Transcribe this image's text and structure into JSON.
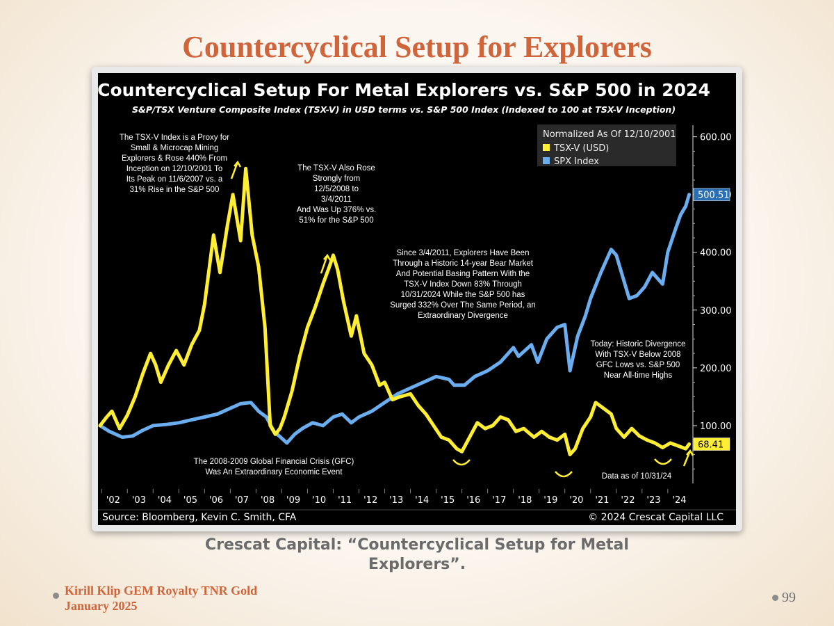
{
  "slide": {
    "title": "Countercyclical Setup for Explorers",
    "caption": "Crescat Capital: “Countercyclical Setup for Metal Explorers”.",
    "footer_line1": "Kirill Klip GEM Royalty TNR Gold",
    "footer_line2": "January 2025",
    "page_number": "99"
  },
  "chart_data": {
    "type": "line",
    "title": "Countercyclical Setup For Metal Explorers vs. S&P 500 in 2024",
    "subtitle": "S&P/TSX Venture Composite Index (TSX-V) in USD terms vs. S&P 500 Index (Indexed to 100 at TSX-V Inception)",
    "legend_title": "Normalized As Of 12/10/2001",
    "legend_position": "top-right",
    "y_axis_position": "right",
    "ylim": [
      0,
      620
    ],
    "y_ticks": [
      100,
      200,
      300,
      400,
      500,
      600
    ],
    "y_tick_labels": [
      "100.00",
      "200.00",
      "300.00",
      "400.00",
      "500.00",
      "600.00"
    ],
    "x_start": 2001.94,
    "x_end": 2024.95,
    "x_ticks": [
      "'02",
      "'03",
      "'04",
      "'05",
      "'06",
      "'07",
      "'08",
      "'09",
      "'10",
      "'11",
      "'12",
      "'13",
      "'14",
      "'15",
      "'16",
      "'17",
      "'18",
      "'19",
      "'20",
      "'21",
      "'22",
      "'23",
      "'24"
    ],
    "series": [
      {
        "name": "TSX-V (USD)",
        "color": "#ffee33",
        "last_value_label": "68.41",
        "x": [
          2001.94,
          2002.2,
          2002.4,
          2002.7,
          2003.0,
          2003.3,
          2003.6,
          2003.9,
          2004.1,
          2004.3,
          2004.6,
          2004.9,
          2005.2,
          2005.5,
          2005.8,
          2006.0,
          2006.35,
          2006.6,
          2006.9,
          2007.1,
          2007.4,
          2007.6,
          2007.85,
          2008.1,
          2008.35,
          2008.55,
          2008.75,
          2008.93,
          2009.1,
          2009.4,
          2009.7,
          2010.0,
          2010.3,
          2010.6,
          2010.85,
          2011.0,
          2011.17,
          2011.4,
          2011.7,
          2011.9,
          2012.2,
          2012.5,
          2012.8,
          2013.0,
          2013.3,
          2013.6,
          2014.0,
          2014.3,
          2014.6,
          2014.9,
          2015.2,
          2015.5,
          2015.8,
          2016.0,
          2016.3,
          2016.6,
          2016.9,
          2017.2,
          2017.5,
          2017.8,
          2018.1,
          2018.4,
          2018.8,
          2019.1,
          2019.4,
          2019.7,
          2020.0,
          2020.2,
          2020.4,
          2020.7,
          2021.0,
          2021.2,
          2021.5,
          2021.8,
          2022.0,
          2022.3,
          2022.6,
          2022.9,
          2023.2,
          2023.5,
          2023.8,
          2024.1,
          2024.4,
          2024.7,
          2024.83
        ],
        "y": [
          100,
          115,
          125,
          95,
          118,
          150,
          190,
          225,
          205,
          175,
          205,
          230,
          205,
          240,
          265,
          310,
          430,
          365,
          450,
          500,
          420,
          545,
          430,
          375,
          270,
          100,
          85,
          95,
          115,
          160,
          220,
          270,
          305,
          345,
          375,
          395,
          370,
          315,
          255,
          290,
          225,
          205,
          170,
          175,
          145,
          150,
          155,
          135,
          120,
          100,
          80,
          75,
          60,
          55,
          80,
          105,
          95,
          100,
          115,
          110,
          90,
          95,
          80,
          90,
          80,
          75,
          85,
          50,
          60,
          95,
          115,
          140,
          130,
          120,
          95,
          80,
          95,
          82,
          75,
          70,
          62,
          70,
          65,
          60,
          68
        ]
      },
      {
        "name": "SPX Index",
        "color": "#6aaef0",
        "last_value_label": "500.51",
        "x": [
          2001.94,
          2002.3,
          2002.8,
          2003.2,
          2003.6,
          2004.0,
          2004.5,
          2005.0,
          2005.5,
          2006.0,
          2006.5,
          2007.0,
          2007.4,
          2007.8,
          2008.1,
          2008.4,
          2008.7,
          2008.95,
          2009.2,
          2009.5,
          2009.8,
          2010.2,
          2010.6,
          2011.0,
          2011.35,
          2011.7,
          2012.0,
          2012.5,
          2013.0,
          2013.5,
          2014.0,
          2014.5,
          2015.0,
          2015.5,
          2015.7,
          2016.1,
          2016.5,
          2017.0,
          2017.5,
          2018.0,
          2018.2,
          2018.7,
          2018.95,
          2019.3,
          2019.7,
          2020.0,
          2020.2,
          2020.5,
          2020.8,
          2021.0,
          2021.4,
          2021.8,
          2022.0,
          2022.3,
          2022.5,
          2022.8,
          2023.1,
          2023.4,
          2023.8,
          2024.0,
          2024.3,
          2024.5,
          2024.7,
          2024.83
        ],
        "y": [
          100,
          90,
          80,
          82,
          92,
          100,
          102,
          105,
          110,
          115,
          120,
          130,
          138,
          140,
          125,
          115,
          90,
          80,
          70,
          85,
          95,
          105,
          100,
          115,
          120,
          105,
          115,
          125,
          140,
          155,
          165,
          175,
          185,
          180,
          170,
          170,
          185,
          195,
          210,
          235,
          220,
          240,
          210,
          250,
          270,
          275,
          195,
          255,
          290,
          320,
          365,
          405,
          395,
          350,
          320,
          325,
          340,
          365,
          345,
          400,
          440,
          465,
          480,
          500
        ]
      }
    ],
    "annotations": [
      {
        "lines": [
          "The TSX-V Index is a Proxy for",
          "Small & Microcap Mining",
          "Explorers & Rose 440% From",
          "Inception on 12/10/2001 To",
          "Its Peak on 11/6/2007 vs. a",
          "31% Rise in the S&P 500"
        ]
      },
      {
        "lines": [
          "The TSX-V Also Rose",
          "Strongly from",
          "12/5/2008 to",
          "3/4/2011",
          "And Was Up 376% vs.",
          "51% for the S&P 500"
        ]
      },
      {
        "lines": [
          "Since 3/4/2011, Explorers Have Been",
          "Through a Historic 14-year Bear Market",
          "And Potential Basing Pattern With the",
          "TSX-V Index Down 83% Through",
          "10/31/2024 While the S&P 500 has",
          "Surged 332% Over The Same Period, an",
          "Extraordinary Divergence"
        ]
      },
      {
        "lines": [
          "Today: Historic Divergence",
          "With TSX-V Below 2008",
          "GFC Lows vs. S&P 500",
          "Near All-time Highs"
        ]
      },
      {
        "lines": [
          "The 2008-2009 Global Financial Crisis (GFC)",
          "Was An Extraordinary Economic Event"
        ]
      },
      {
        "lines": [
          "Data as of 10/31/24"
        ]
      }
    ],
    "source": "Source: Bloomberg, Kevin C. Smith, CFA",
    "copyright": "© 2024 Crescat Capital LLC"
  }
}
